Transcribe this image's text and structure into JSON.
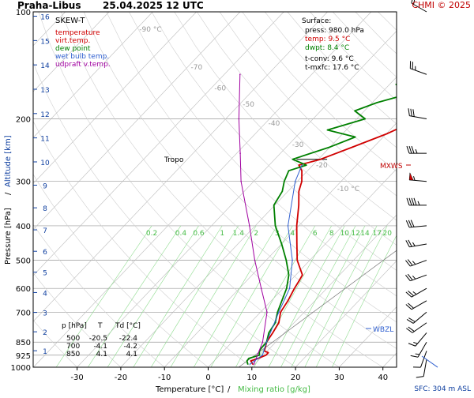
{
  "header": {
    "station": "Praha-Libus",
    "datetime": "25.04.2025 12 UTC",
    "copyright": "CHMI © 2025"
  },
  "legend": {
    "title": "SKEW-T",
    "items": [
      {
        "label": "temperature",
        "color": "#d00000"
      },
      {
        "label": "virt.temp.",
        "color": "#d00000"
      },
      {
        "label": "dew point",
        "color": "#008000"
      },
      {
        "label": "wet bulb temp.",
        "color": "#3060d0"
      },
      {
        "label": "udpraft v.temp.",
        "color": "#a000a0"
      }
    ]
  },
  "surface": {
    "title": "Surface:",
    "press": "press: 980.0 hPa",
    "temp": "temp: 9.5 °C",
    "dwpt": "dwpt: 8.4 °C",
    "tconv": "t-conv: 9.6 °C",
    "tmxfc": "t-mxfc: 17.6 °C"
  },
  "table": {
    "header": [
      "p [hPa]",
      "T",
      "Td [°C]"
    ],
    "rows": [
      [
        "500",
        "-20.5",
        "-22.4"
      ],
      [
        "700",
        "-4.1",
        "-4.2"
      ],
      [
        "850",
        "4.1",
        "4.1"
      ]
    ]
  },
  "annotations": {
    "tropo": "Tropo",
    "mxws": "MXWS",
    "wbzl": "WBZL",
    "sfc": "SFC: 304 m ASL"
  },
  "axes": {
    "xlabel_temp": "Temperature [°C]",
    "xlabel_sep": "/",
    "xlabel_mix": "Mixing ratio [g/kg]",
    "ylabel_pressure": "Pressure [hPa]",
    "ylabel_sep": "/",
    "ylabel_altitude": "Altitude [km]"
  },
  "chart_data": {
    "type": "line",
    "pressure_ticks": [
      100,
      200,
      300,
      400,
      500,
      600,
      700,
      850,
      925,
      1000
    ],
    "temperature_ticks": [
      -30,
      -20,
      -10,
      0,
      10,
      20,
      30,
      40
    ],
    "altitude_ticks": [
      1,
      2,
      3,
      4,
      5,
      6,
      7,
      8,
      9,
      10,
      11,
      12,
      13,
      14,
      15,
      16
    ],
    "isotherm_labels": [
      {
        "t": -90,
        "label": "-90 °C",
        "p": 112
      },
      {
        "t": -70,
        "label": "-70",
        "p": 143
      },
      {
        "t": -60,
        "label": "-60",
        "p": 164
      },
      {
        "t": -50,
        "label": "-50",
        "p": 182
      },
      {
        "t": -40,
        "label": "-40",
        "p": 206
      },
      {
        "t": -30,
        "label": "-30",
        "p": 236
      },
      {
        "t": -20,
        "label": "-20",
        "p": 270
      },
      {
        "t": -10,
        "label": "-10 °C",
        "p": 315
      }
    ],
    "mixing_ratios": [
      0.2,
      0.4,
      0.6,
      1,
      1.4,
      2,
      3,
      4,
      6,
      8,
      10,
      12,
      14,
      17,
      20,
      25
    ],
    "mixing_labels": [
      "0.2",
      "0.4",
      "0.6",
      "1",
      "1.4",
      "2",
      "3",
      "4",
      "6",
      "8",
      "10",
      "12",
      "14",
      "17",
      "20",
      "25"
    ],
    "series": [
      {
        "name": "temperature",
        "color": "#d00000",
        "points": [
          [
            980,
            9.5
          ],
          [
            960,
            8.4
          ],
          [
            945,
            9.5
          ],
          [
            925,
            10.6
          ],
          [
            910,
            10.6
          ],
          [
            900,
            9.3
          ],
          [
            880,
            8.8
          ],
          [
            850,
            7.9
          ],
          [
            800,
            7.3
          ],
          [
            750,
            6.5
          ],
          [
            700,
            4.6
          ],
          [
            650,
            3.8
          ],
          [
            600,
            2.6
          ],
          [
            570,
            2.0
          ],
          [
            550,
            1.5
          ],
          [
            500,
            -2.9
          ],
          [
            450,
            -6.5
          ],
          [
            400,
            -10.5
          ],
          [
            350,
            -14.5
          ],
          [
            320,
            -17.5
          ],
          [
            300,
            -19.0
          ],
          [
            280,
            -21.3
          ],
          [
            270,
            -23.2
          ],
          [
            260,
            -19.5
          ],
          [
            240,
            -14.8
          ],
          [
            220,
            -9.8
          ],
          [
            200,
            -5.7
          ],
          [
            185,
            -2.9
          ],
          [
            170,
            0.9
          ],
          [
            160,
            2.6
          ],
          [
            145,
            5.7
          ],
          [
            130,
            8.9
          ],
          [
            115,
            13.0
          ],
          [
            102,
            17.9
          ],
          [
            100,
            18.4
          ]
        ]
      },
      {
        "name": "dew point",
        "color": "#008000",
        "points": [
          [
            980,
            8.4
          ],
          [
            960,
            7.5
          ],
          [
            945,
            7.4
          ],
          [
            925,
            9.1
          ],
          [
            900,
            8.2
          ],
          [
            880,
            8.0
          ],
          [
            850,
            7.9
          ],
          [
            800,
            6.4
          ],
          [
            750,
            5.7
          ],
          [
            700,
            3.9
          ],
          [
            650,
            2.4
          ],
          [
            600,
            0.8
          ],
          [
            550,
            -1.6
          ],
          [
            500,
            -5.4
          ],
          [
            450,
            -10.0
          ],
          [
            400,
            -15.4
          ],
          [
            350,
            -20.2
          ],
          [
            320,
            -21.3
          ],
          [
            300,
            -23.0
          ],
          [
            280,
            -24.3
          ],
          [
            270,
            -21.5
          ],
          [
            260,
            -25.9
          ],
          [
            240,
            -20.0
          ],
          [
            225,
            -16.4
          ],
          [
            215,
            -24.3
          ],
          [
            200,
            -18.1
          ],
          [
            190,
            -22.2
          ],
          [
            180,
            -18.9
          ],
          [
            170,
            -13.5
          ],
          [
            160,
            -18.5
          ],
          [
            150,
            -16.9
          ],
          [
            140,
            -20.5
          ],
          [
            130,
            -12.4
          ],
          [
            120,
            -10.2
          ],
          [
            110,
            -5.0
          ],
          [
            100,
            -4.0
          ]
        ]
      },
      {
        "name": "updraft v.temp.",
        "color": "#a000a0",
        "points": [
          [
            980,
            9.8
          ],
          [
            850,
            7.0
          ],
          [
            700,
            1.5
          ],
          [
            600,
            -5.0
          ],
          [
            500,
            -12.6
          ],
          [
            400,
            -21.3
          ],
          [
            300,
            -32.9
          ],
          [
            250,
            -39.2
          ],
          [
            200,
            -47.0
          ],
          [
            150,
            -56.4
          ]
        ]
      },
      {
        "name": "wet bulb temp.",
        "color": "#3060d0",
        "points": [
          [
            980,
            8.9
          ],
          [
            925,
            9.8
          ],
          [
            850,
            7.9
          ],
          [
            700,
            4.2
          ],
          [
            600,
            1.5
          ],
          [
            500,
            -4.0
          ],
          [
            400,
            -12.5
          ],
          [
            300,
            -20.5
          ],
          [
            270,
            -22.5
          ]
        ]
      }
    ],
    "winds_pressure_levels": [
      100,
      150,
      200,
      250,
      300,
      350,
      400,
      450,
      500,
      550,
      600,
      650,
      700,
      750,
      800,
      850,
      900,
      950
    ],
    "wind_directions_deg": [
      300,
      290,
      280,
      270,
      275,
      270,
      265,
      260,
      250,
      250,
      240,
      240,
      230,
      235,
      220,
      210,
      200,
      190
    ],
    "wind_speeds_kt": [
      20,
      25,
      30,
      35,
      55,
      45,
      30,
      25,
      25,
      25,
      25,
      20,
      20,
      20,
      15,
      15,
      10,
      10
    ],
    "tropopause_p": 260,
    "mxws_p": 265,
    "wbzl_p": 780
  }
}
